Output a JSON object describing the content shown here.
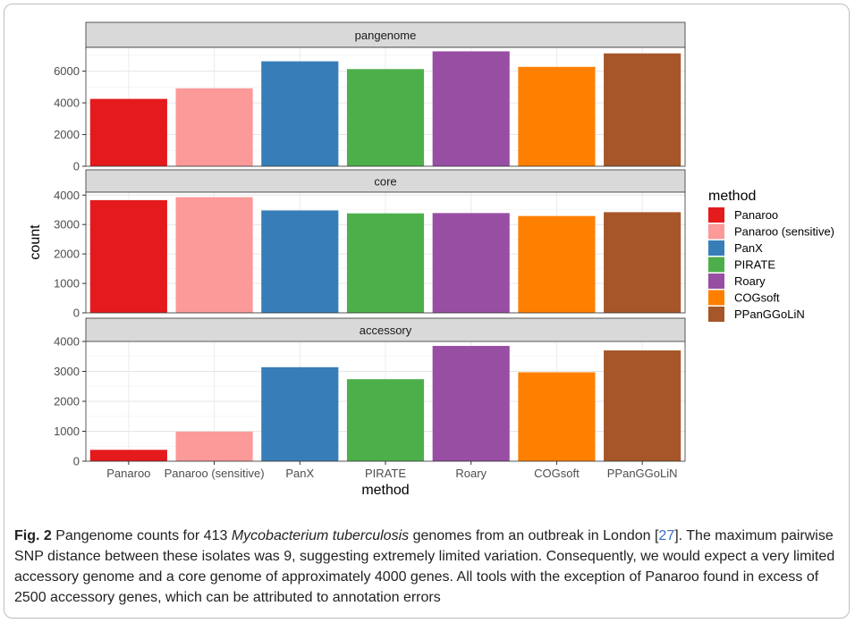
{
  "chart_data": {
    "type": "bar",
    "facet_order": [
      "pangenome",
      "core",
      "accessory"
    ],
    "categories": [
      "Panaroo",
      "Panaroo (sensitive)",
      "PanX",
      "PIRATE",
      "Roary",
      "COGsoft",
      "PPanGGoLiN"
    ],
    "facets": [
      {
        "name": "pangenome",
        "values": [
          4250,
          4920,
          6620,
          6130,
          7250,
          6270,
          7120
        ],
        "ylim": [
          0,
          7500
        ],
        "yticks": [
          "0",
          "2000",
          "4000",
          "6000"
        ],
        "ytick_values": [
          0,
          2000,
          4000,
          6000
        ]
      },
      {
        "name": "core",
        "values": [
          3830,
          3930,
          3480,
          3380,
          3390,
          3290,
          3420
        ],
        "ylim": [
          0,
          4100
        ],
        "yticks": [
          "0",
          "1000",
          "2000",
          "3000",
          "4000"
        ],
        "ytick_values": [
          0,
          1000,
          2000,
          3000,
          4000
        ]
      },
      {
        "name": "accessory",
        "values": [
          380,
          990,
          3140,
          2740,
          3850,
          2970,
          3700
        ],
        "ylim": [
          0,
          4000
        ],
        "yticks": [
          "0",
          "1000",
          "2000",
          "3000",
          "4000"
        ],
        "ytick_values": [
          0,
          1000,
          2000,
          3000,
          4000
        ]
      }
    ],
    "colors": [
      "#e41a1c",
      "#fb9a99",
      "#377eb8",
      "#4daf4a",
      "#984ea3",
      "#ff7f00",
      "#a65628"
    ],
    "xlabel": "method",
    "ylabel": "count",
    "legend": {
      "title": "method",
      "placement": "right",
      "entries": [
        "Panaroo",
        "Panaroo (sensitive)",
        "PanX",
        "PIRATE",
        "Roary",
        "COGsoft",
        "PPanGGoLiN"
      ]
    },
    "grid": true
  },
  "caption": {
    "fig_label": "Fig. 2",
    "text_1": "Pangenome counts for 413",
    "species": "Mycobacterium tuberculosis",
    "text_2": "genomes from an outbreak in London [",
    "ref": "27",
    "text_3": "]. The maximum pairwise SNP distance between these isolates was 9, suggesting extremely limited variation. Consequently, we would expect a very limited accessory genome and a core genome of approximately 4000 genes. All tools with the exception of Panaroo found in excess of 2500 accessory genes, which can be attributed to annotation errors"
  }
}
